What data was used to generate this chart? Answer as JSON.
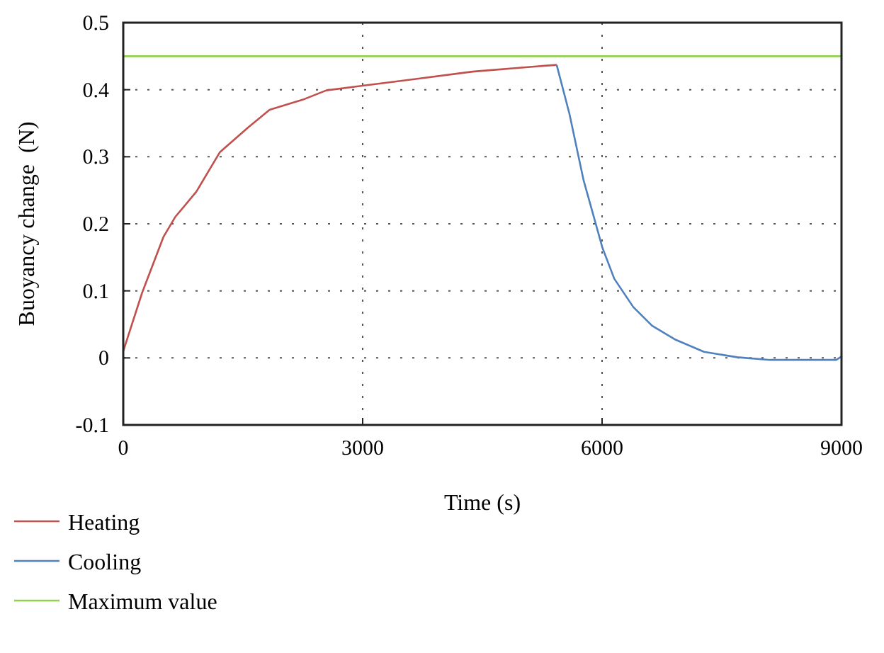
{
  "chart_data": {
    "type": "line",
    "xlabel": "Time (s)",
    "ylabel": "Buoyancy change  (N)",
    "xlim": [
      0,
      9000
    ],
    "ylim": [
      -0.1,
      0.5
    ],
    "xticks": [
      0,
      3000,
      6000,
      9000
    ],
    "yticks": [
      -0.1,
      0,
      0.1,
      0.2,
      0.3,
      0.4,
      0.5
    ],
    "grid": true,
    "legend": "bottom",
    "line_style": "solid",
    "marker": "none",
    "series": [
      {
        "name": "Heating",
        "color": "#c0504d",
        "x": [
          0,
          236,
          502,
          650,
          916,
          1212,
          1567,
          1834,
          2247,
          2544,
          3000,
          3667,
          4377,
          5206,
          5431
        ],
        "values": [
          0.01,
          0.097,
          0.18,
          0.21,
          0.248,
          0.307,
          0.344,
          0.37,
          0.385,
          0.399,
          0.406,
          0.416,
          0.427,
          0.435,
          0.437
        ]
      },
      {
        "name": "Cooling",
        "color": "#4f81bd",
        "x": [
          5431,
          5591,
          5768,
          5916,
          6005,
          6153,
          6390,
          6626,
          6923,
          7277,
          7691,
          8105,
          8579,
          8934,
          9000
        ],
        "values": [
          0.437,
          0.364,
          0.265,
          0.202,
          0.164,
          0.118,
          0.076,
          0.048,
          0.027,
          0.009,
          0.001,
          -0.003,
          -0.003,
          -0.003,
          0.002
        ]
      },
      {
        "name": "Maximum value",
        "color": "#92d050",
        "x": [
          0,
          9000
        ],
        "values": [
          0.45,
          0.45
        ]
      }
    ]
  }
}
